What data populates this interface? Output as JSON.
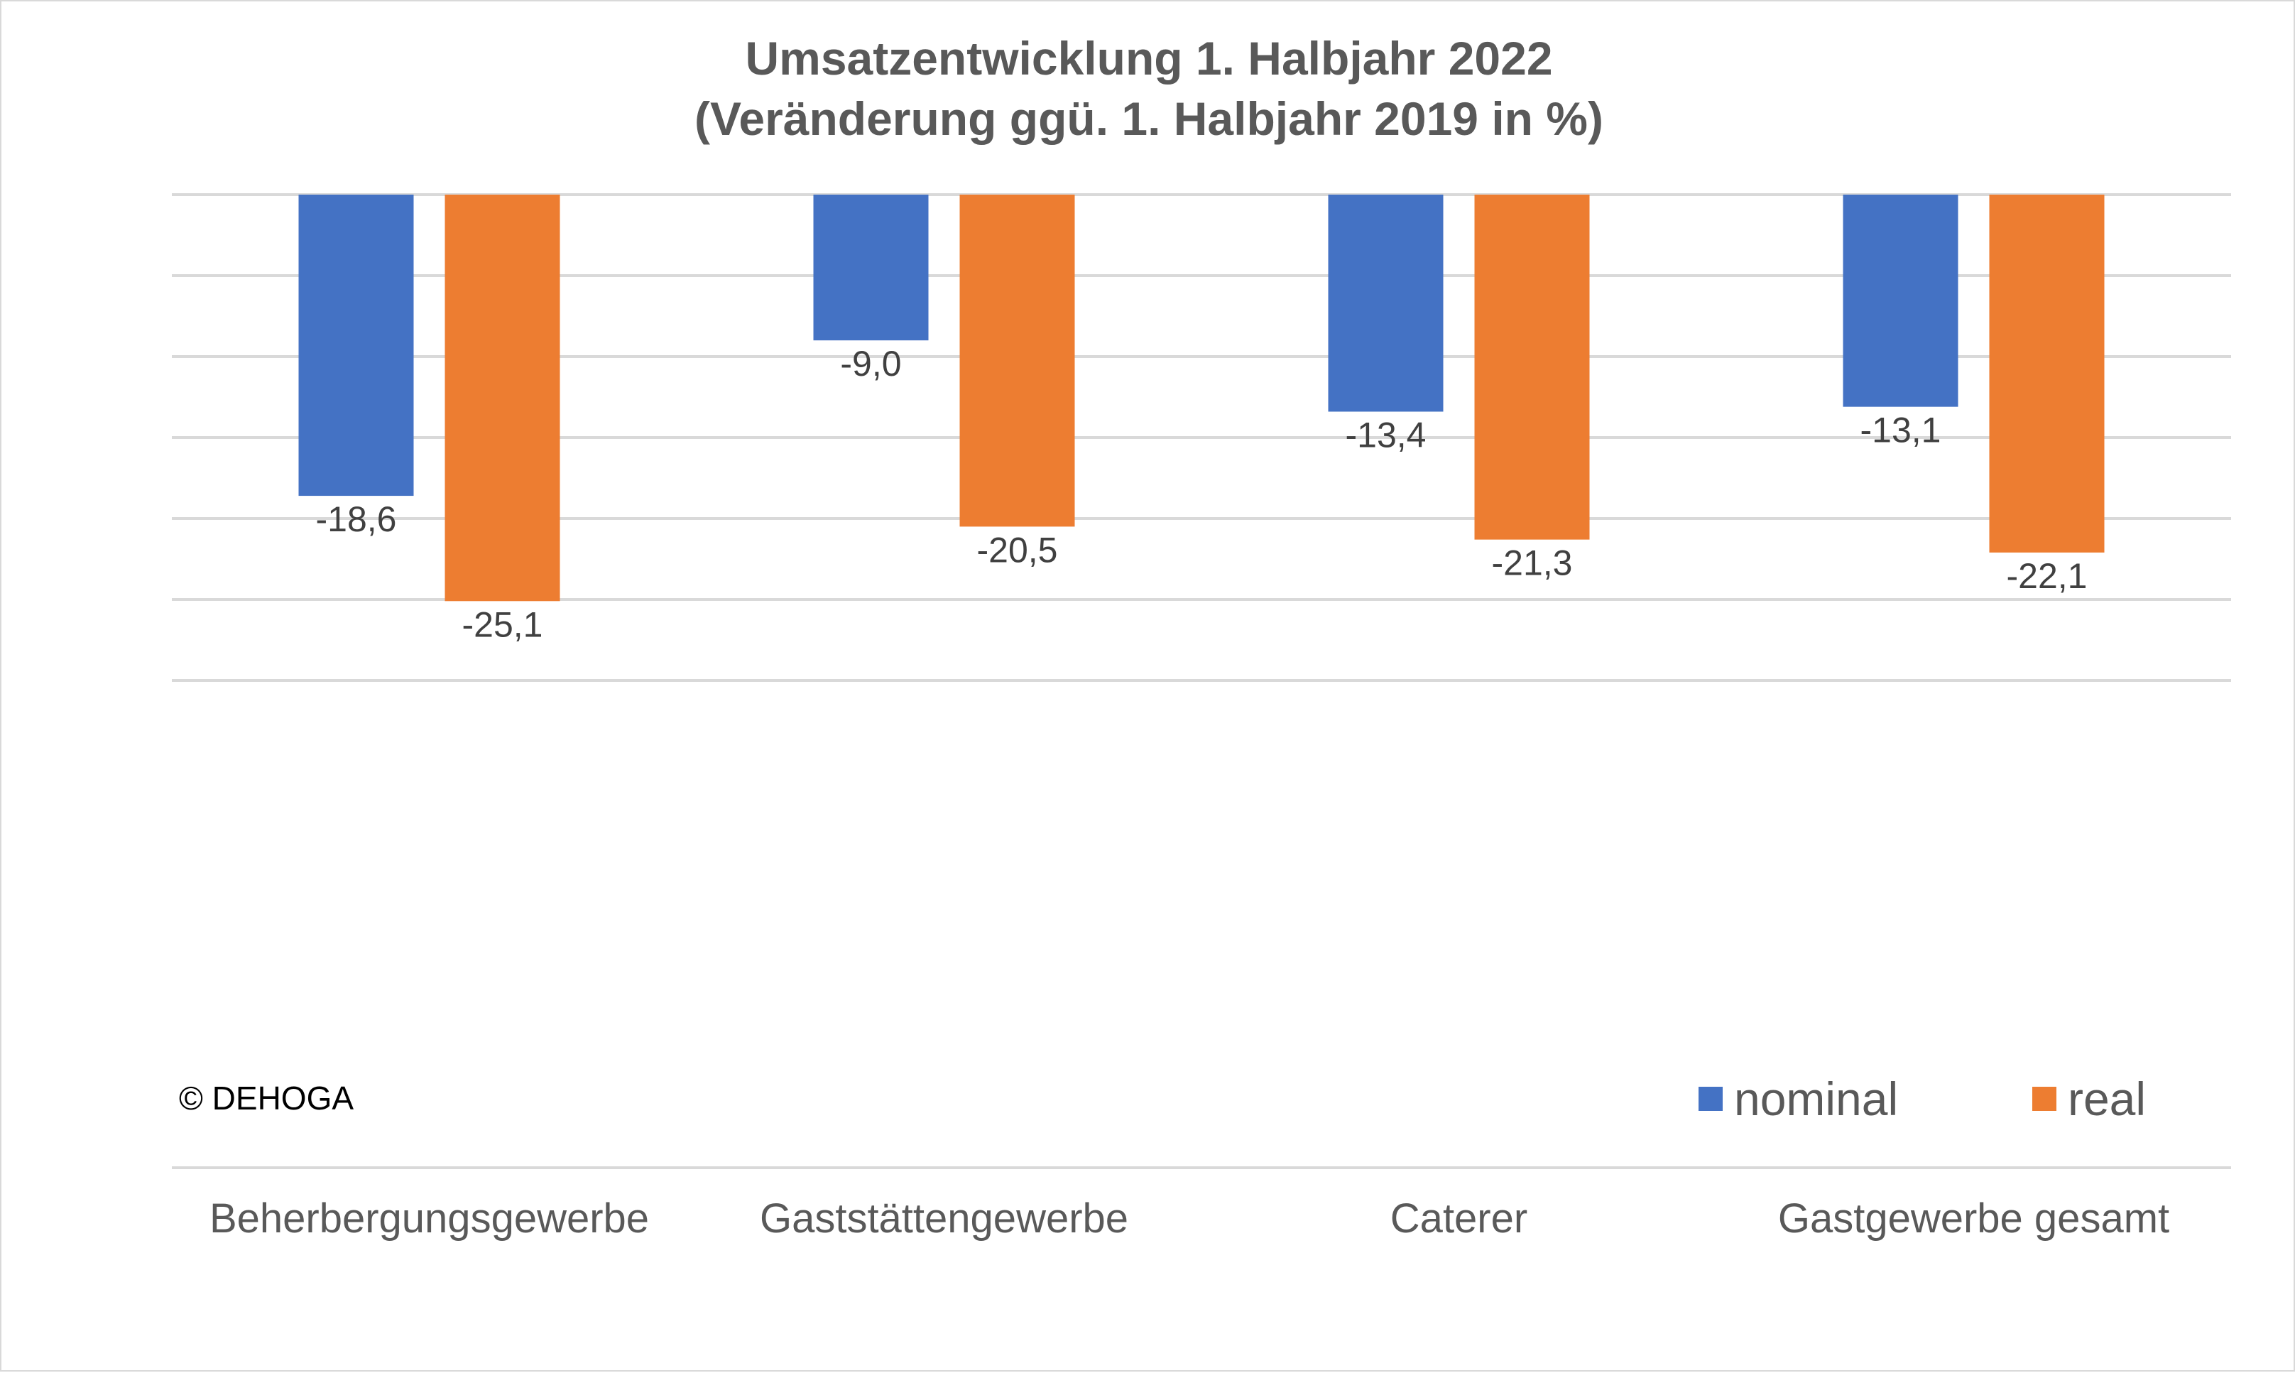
{
  "chart_data": {
    "type": "bar",
    "title": "Umsatzentwicklung 1. Halbjahr 2022",
    "subtitle": "(Veränderung ggü. 1. Halbjahr 2019 in %)",
    "categories": [
      "Beherbergungsgewerbe",
      "Gaststättengewerbe",
      "Caterer",
      "Gastgewerbe gesamt"
    ],
    "series": [
      {
        "name": "nominal",
        "color": "#4472c4",
        "values": [
          -18.6,
          -9.0,
          -13.4,
          -13.1
        ],
        "labels": [
          "-18,6",
          "-9,0",
          "-13,4",
          "-13,1"
        ]
      },
      {
        "name": "real",
        "color": "#ed7d31",
        "values": [
          -25.1,
          -20.5,
          -21.3,
          -22.1
        ],
        "labels": [
          "-25,1",
          "-20,5",
          "-21,3",
          "-22,1"
        ]
      }
    ],
    "ylim": [
      -30,
      0
    ],
    "grid": true,
    "legend": "bottom-right",
    "annotation": "© DEHOGA"
  }
}
